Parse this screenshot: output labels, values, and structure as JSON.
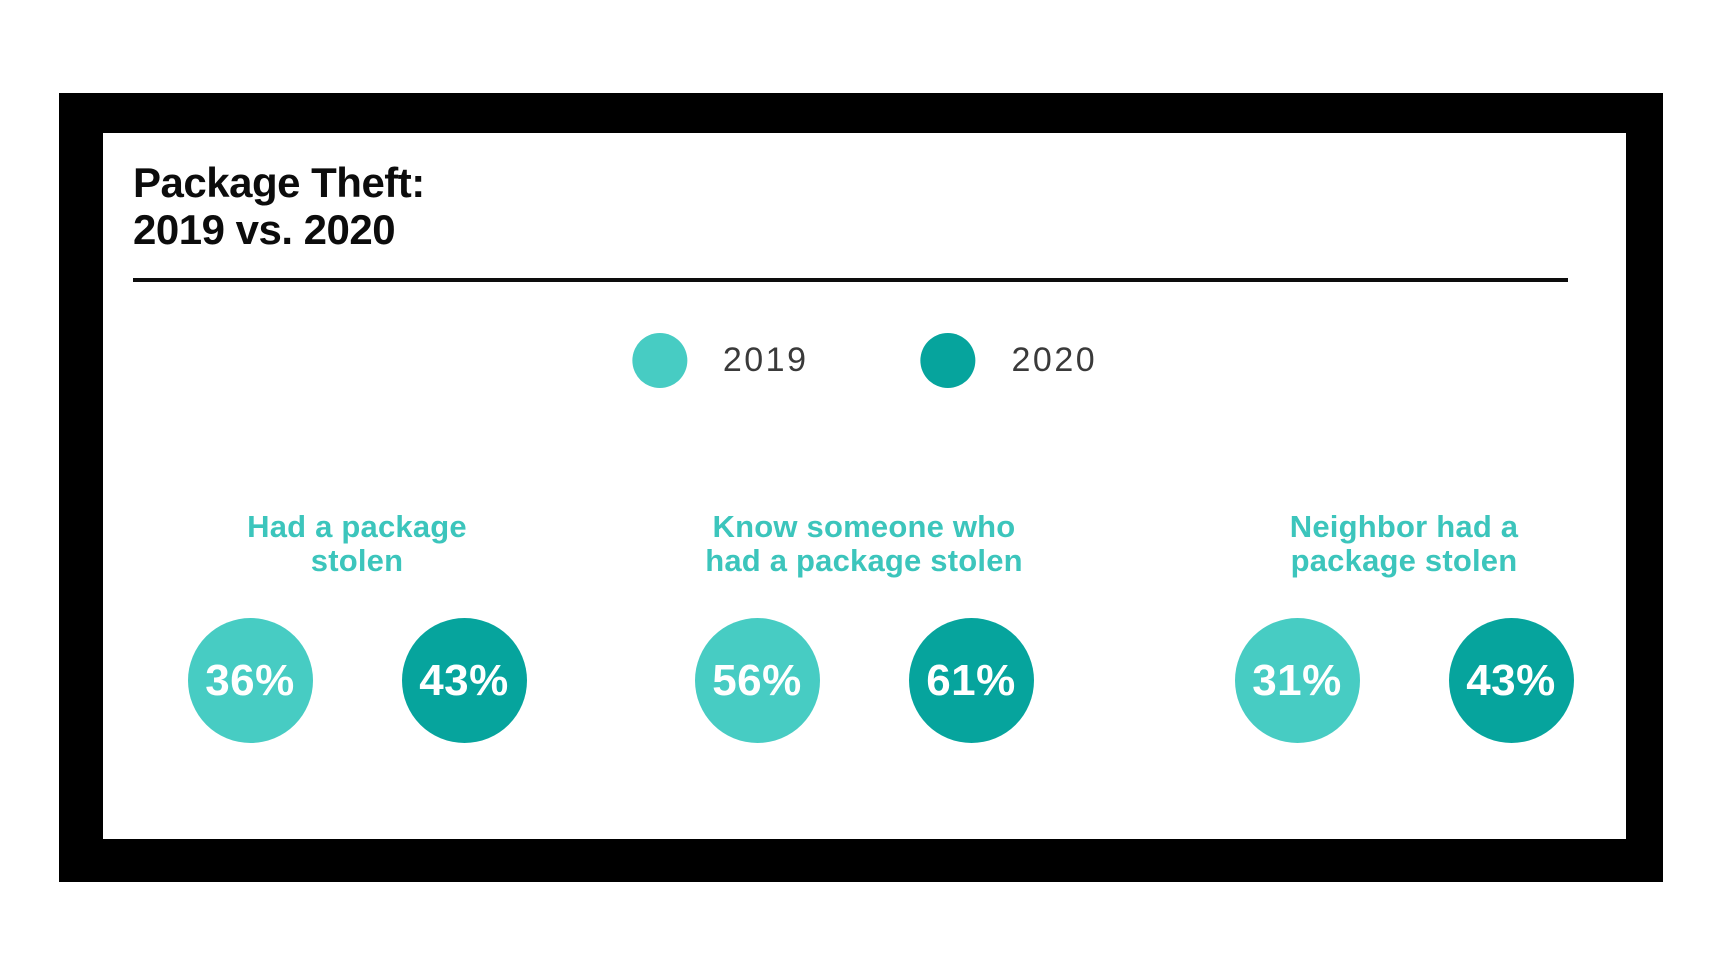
{
  "title": {
    "line1": "Package Theft:",
    "line2": "2019 vs. 2020"
  },
  "legend": {
    "items": [
      {
        "label": "2019",
        "color": "#47CCC3"
      },
      {
        "label": "2020",
        "color": "#06A49D"
      }
    ]
  },
  "colors": {
    "teal_2019": "#47CCC3",
    "teal_2020": "#06A49D",
    "heading_teal": "#3CC5BC",
    "frame_border": "#000000",
    "card_background": "#FFFFFF",
    "title_text": "#0C0C0C",
    "legend_text": "#3A3A3A",
    "value_text": "#FFFFFF"
  },
  "groups": [
    {
      "heading_line1": "Had a package",
      "heading_line2": "stolen",
      "pct_2019": "36%",
      "pct_2020": "43%"
    },
    {
      "heading_line1": "Know someone who",
      "heading_line2": "had a package stolen",
      "pct_2019": "56%",
      "pct_2020": "61%"
    },
    {
      "heading_line1": "Neighbor had a",
      "heading_line2": "package stolen",
      "pct_2019": "31%",
      "pct_2020": "43%"
    }
  ],
  "chart_data": {
    "type": "bar",
    "title": "Package Theft: 2019 vs. 2020",
    "categories": [
      "Had a package stolen",
      "Know someone who had a package stolen",
      "Neighbor had a package stolen"
    ],
    "series": [
      {
        "name": "2019",
        "values": [
          36,
          56,
          31
        ],
        "color": "#47CCC3"
      },
      {
        "name": "2020",
        "values": [
          43,
          61,
          43
        ],
        "color": "#06A49D"
      }
    ],
    "unit": "%",
    "xlabel": "",
    "ylabel": "",
    "legend_position": "top-center",
    "grid": false,
    "representation": "paired percentage circles per category"
  }
}
